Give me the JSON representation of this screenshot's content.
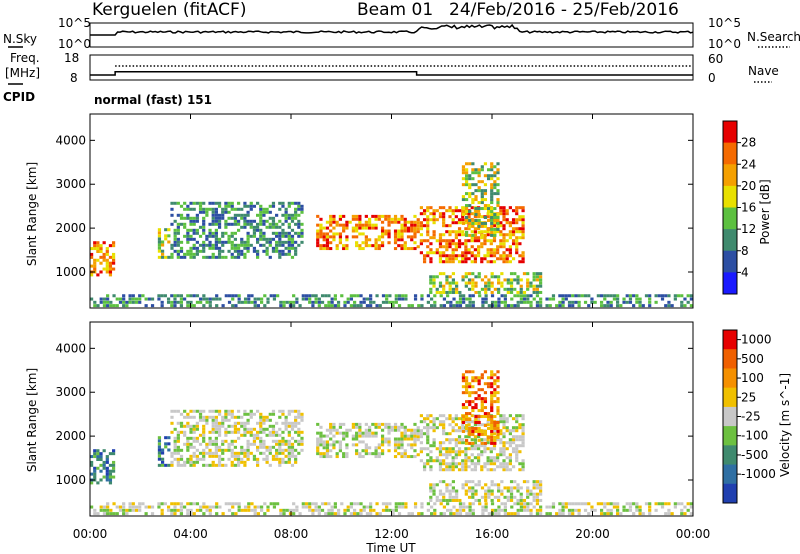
{
  "chart_data": {
    "type": "heatmap",
    "header": {
      "station": "Kerguelen (fitACF)",
      "beam": "Beam 01",
      "dates": "24/Feb/2016 - 25/Feb/2016"
    },
    "noise_panel": {
      "left_label": "N.Sky",
      "right_label": "N.Search",
      "left_ticks": [
        "10^5",
        "10^0"
      ],
      "right_ticks": [
        "10^5",
        "10^0"
      ]
    },
    "freq_panel": {
      "left_label_1": "Freq.",
      "left_label_2": "[MHz]",
      "left_ticks": [
        "18",
        "8"
      ],
      "right_label": "Nave",
      "right_ticks": [
        "60",
        "0"
      ],
      "cpid_label": "CPID",
      "cpid_value": "normal (fast) 151",
      "freq_steps_hours": [
        0,
        1,
        13
      ],
      "freq_values_mhz": [
        10.0,
        11.3,
        10.0
      ]
    },
    "x_axis": {
      "label": "Time UT",
      "range_hours": [
        0,
        24
      ],
      "ticks": [
        "00:00",
        "04:00",
        "08:00",
        "12:00",
        "16:00",
        "20:00",
        "00:00"
      ]
    },
    "y_axis": {
      "label": "Slant Range [km]",
      "range_km": [
        180,
        4600
      ],
      "ticks": [
        "1000",
        "2000",
        "3000",
        "4000"
      ],
      "tick_values": [
        1000,
        2000,
        3000,
        4000
      ]
    },
    "power_panel": {
      "colorbar_label": "Power [dB]",
      "colorbar_ticks": [
        "28",
        "24",
        "20",
        "16",
        "12",
        "8",
        "4"
      ],
      "colorbar_range_db": [
        0,
        32
      ],
      "colors": [
        "#1a1aff",
        "#2d4fa3",
        "#3f8a6e",
        "#5cc040",
        "#e8e000",
        "#f5a000",
        "#f56a00",
        "#e60000"
      ]
    },
    "velocity_panel": {
      "colorbar_label": "Velocity [m s^-1]",
      "colorbar_ticks": [
        "1000",
        "500",
        "100",
        "25",
        "-25",
        "-100",
        "-500",
        "-1000"
      ],
      "colors": [
        "#2040b0",
        "#2f6fa3",
        "#3f8a6e",
        "#6cc040",
        "#c8c8c8",
        "#f0c000",
        "#f59000",
        "#f06000",
        "#e60000"
      ]
    },
    "echo_regions": [
      {
        "t": [
          0.0,
          1.0
        ],
        "r": [
          900,
          1700
        ],
        "power": "high",
        "velocity": "positive"
      },
      {
        "t": [
          2.7,
          3.2
        ],
        "r": [
          1300,
          2000
        ],
        "power": "mid",
        "velocity": "positive"
      },
      {
        "t": [
          3.2,
          8.5
        ],
        "r": [
          1300,
          2600
        ],
        "power": "low",
        "velocity": "near-zero"
      },
      {
        "t": [
          9.0,
          13.0
        ],
        "r": [
          1500,
          2300
        ],
        "power": "high",
        "velocity": "near-zero"
      },
      {
        "t": [
          13.0,
          17.3
        ],
        "r": [
          1200,
          2500
        ],
        "power": "high",
        "velocity": "near-zero"
      },
      {
        "t": [
          14.8,
          16.3
        ],
        "r": [
          1800,
          3500
        ],
        "power": "mid",
        "velocity": "negative"
      },
      {
        "t": [
          13.5,
          18.0
        ],
        "r": [
          500,
          1000
        ],
        "power": "mid",
        "velocity": "near-zero"
      },
      {
        "t": [
          0.0,
          24.0
        ],
        "r": [
          200,
          500
        ],
        "power": "low",
        "velocity": "near-zero"
      }
    ]
  }
}
